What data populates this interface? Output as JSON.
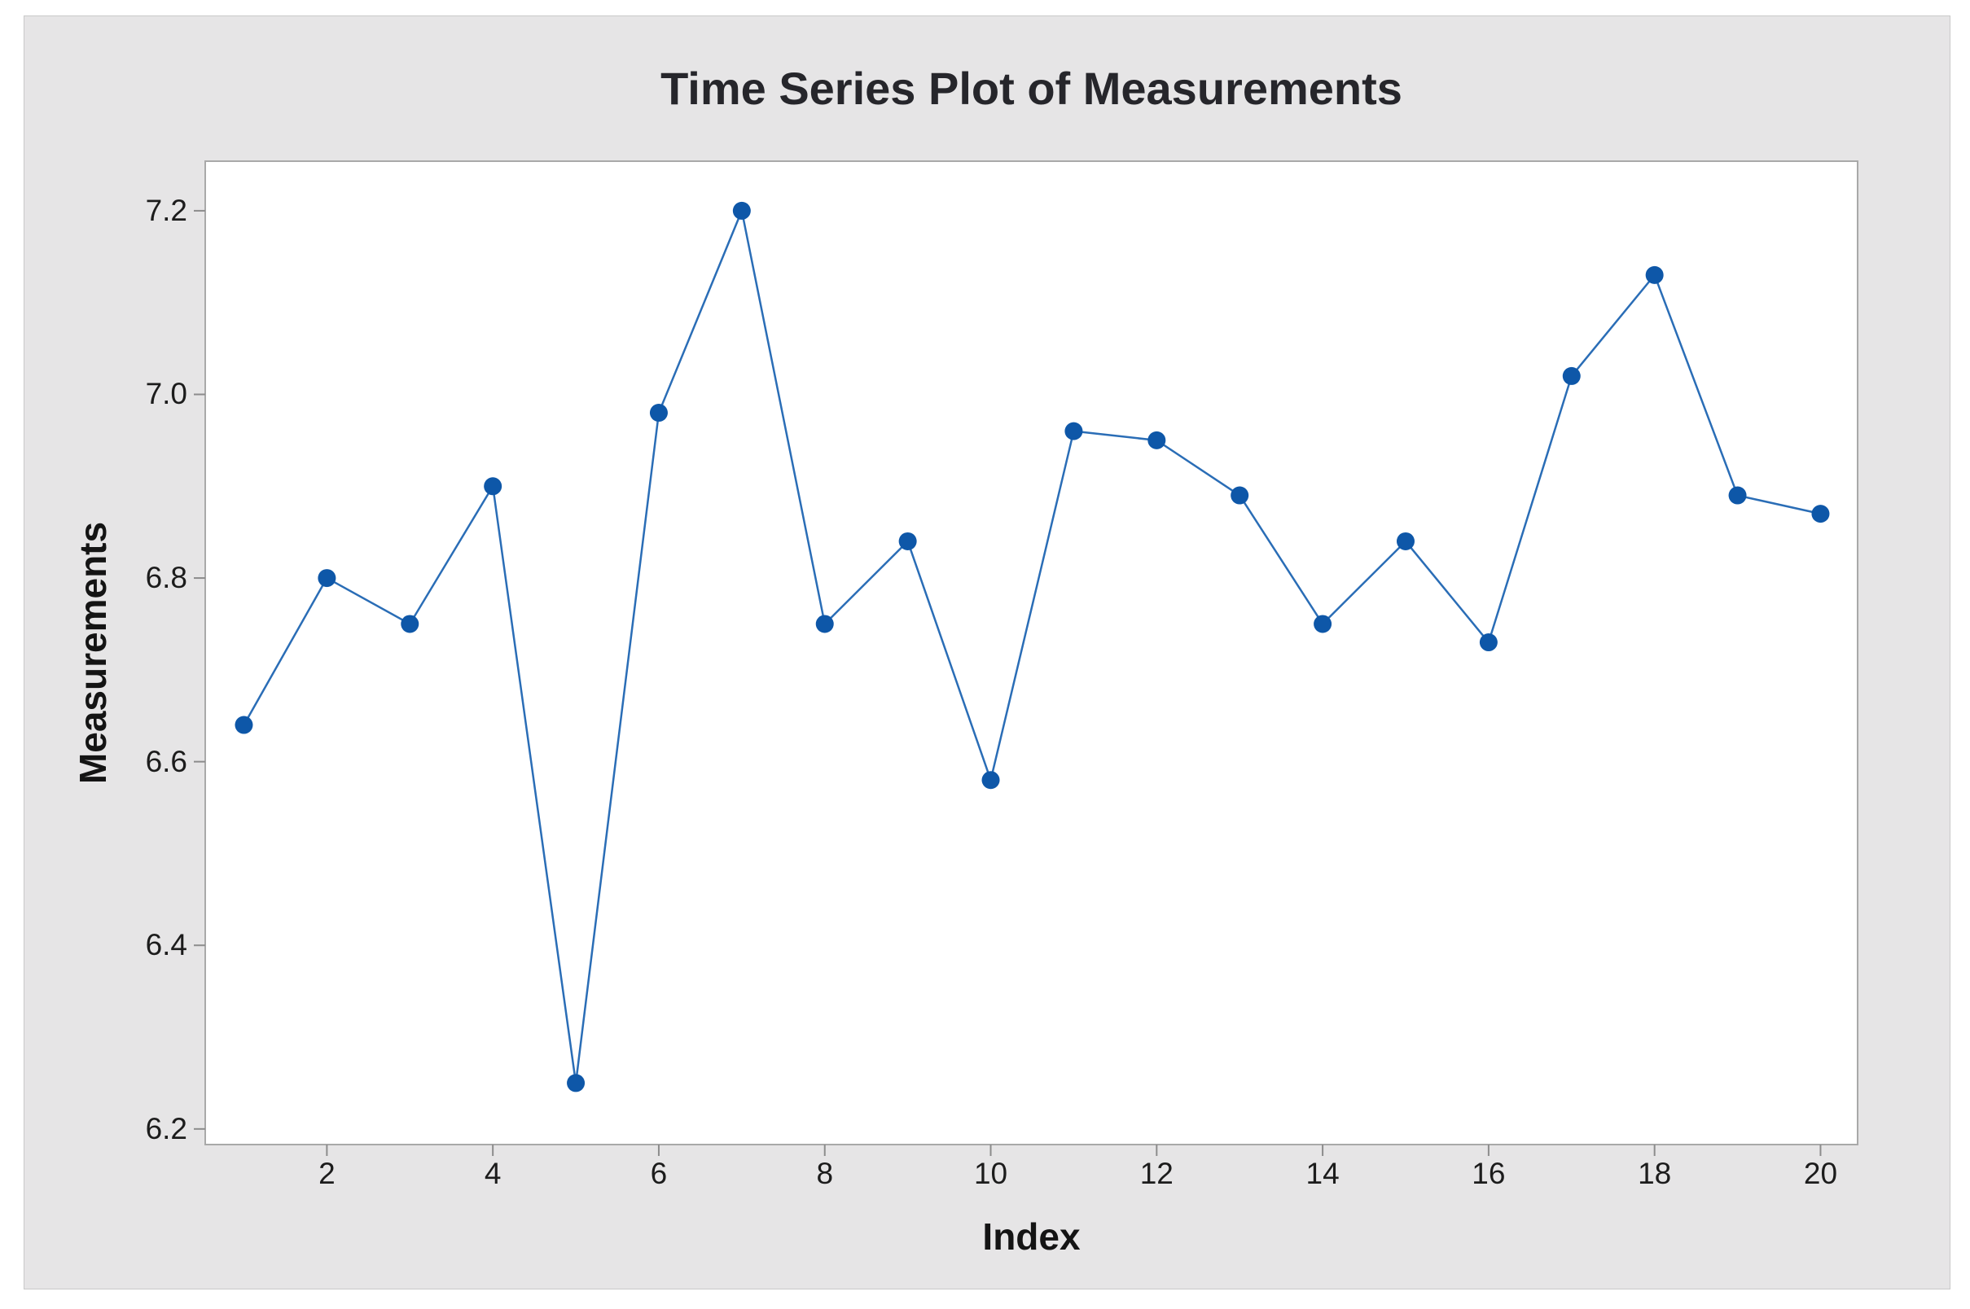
{
  "figure": {
    "colors": {
      "canvas_background": "#e6e5e6",
      "plot_background": "#ffffff",
      "plot_border": "#a9a9a9",
      "tick_mark": "#8c8c8c",
      "line": "#2a6db6",
      "marker": "#0e57a8",
      "title_text": "#26262b",
      "label_text": "#141414"
    }
  },
  "chart_data": {
    "type": "line",
    "title": "Time Series Plot of Measurements",
    "xlabel": "Index",
    "ylabel": "Measurements",
    "x": [
      1,
      2,
      3,
      4,
      5,
      6,
      7,
      8,
      9,
      10,
      11,
      12,
      13,
      14,
      15,
      16,
      17,
      18,
      19,
      20
    ],
    "values": [
      6.64,
      6.8,
      6.75,
      6.9,
      6.25,
      6.98,
      7.2,
      6.75,
      6.84,
      6.58,
      6.96,
      6.95,
      6.89,
      6.75,
      6.84,
      6.73,
      7.02,
      7.13,
      6.89,
      6.87
    ],
    "series_name": "Measurements",
    "x_ticks": [
      2,
      4,
      6,
      8,
      10,
      12,
      14,
      16,
      18,
      20
    ],
    "x_tick_labels": [
      "2",
      "4",
      "6",
      "8",
      "10",
      "12",
      "14",
      "16",
      "18",
      "20"
    ],
    "y_ticks": [
      6.2,
      6.4,
      6.6,
      6.8,
      7.0,
      7.2
    ],
    "y_tick_labels": [
      "6.2",
      "6.4",
      "6.6",
      "6.8",
      "7.0",
      "7.2"
    ],
    "xlim": [
      0.534,
      20.447
    ],
    "ylim": [
      6.183,
      7.254
    ],
    "grid": false,
    "legend_position": "none"
  }
}
